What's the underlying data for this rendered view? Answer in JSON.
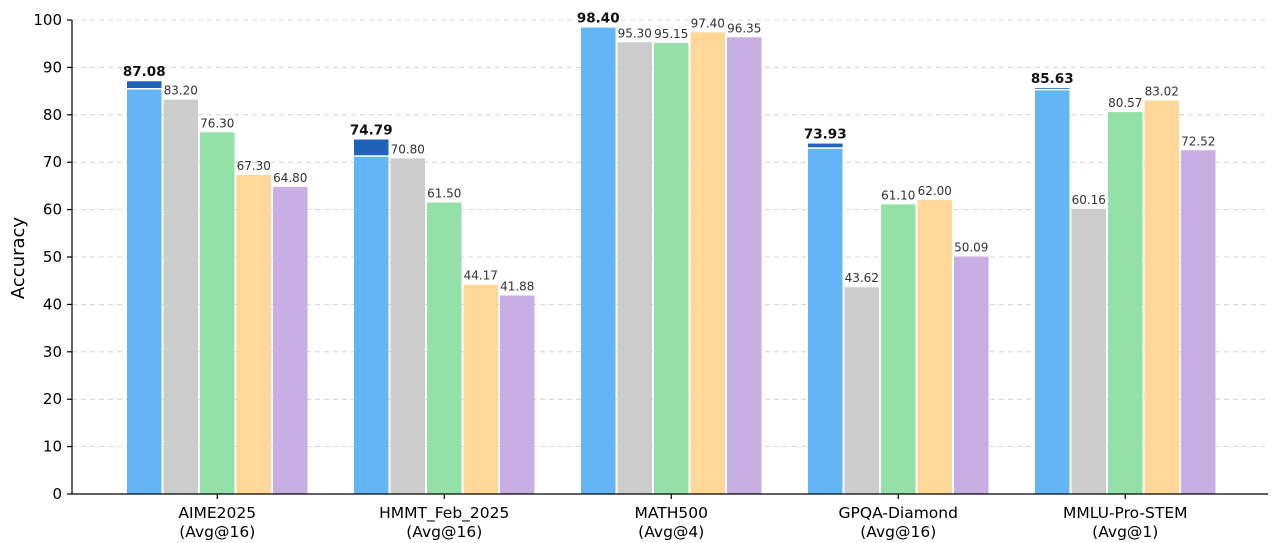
{
  "chart_data": {
    "type": "bar",
    "title": "",
    "xlabel": "",
    "ylabel": "Accuracy",
    "ylim": [
      0,
      100
    ],
    "yticks": [
      0,
      10,
      20,
      30,
      40,
      50,
      60,
      70,
      80,
      90,
      100
    ],
    "grid": true,
    "categories": [
      {
        "line1": "AIME2025",
        "line2": "(Avg@16)"
      },
      {
        "line1": "HMMT_Feb_2025",
        "line2": "(Avg@16)"
      },
      {
        "line1": "MATH500",
        "line2": "(Avg@4)"
      },
      {
        "line1": "GPQA-Diamond",
        "line2": "(Avg@16)"
      },
      {
        "line1": "MMLU-Pro-STEM",
        "line2": "(Avg@1)"
      }
    ],
    "series": [
      {
        "color": "#64b5f6",
        "highlight_color": "#1e63b8",
        "values": [
          87.08,
          74.79,
          98.4,
          73.93,
          85.63
        ],
        "labels": [
          "87.08",
          "74.79",
          "98.40",
          "73.93",
          "85.63"
        ],
        "bold": true
      },
      {
        "color": "#cccccc",
        "values": [
          83.2,
          70.8,
          95.3,
          43.62,
          60.16
        ],
        "labels": [
          "83.20",
          "70.80",
          "95.30",
          "43.62",
          "60.16"
        ]
      },
      {
        "color": "#93e0a8",
        "values": [
          76.3,
          61.5,
          95.15,
          61.1,
          80.57
        ],
        "labels": [
          "76.30",
          "61.50",
          "95.15",
          "61.10",
          "80.57"
        ]
      },
      {
        "color": "#ffd899",
        "values": [
          67.3,
          44.17,
          97.4,
          62.0,
          83.02
        ],
        "labels": [
          "67.30",
          "44.17",
          "97.40",
          "62.00",
          "83.02"
        ]
      },
      {
        "color": "#c9aee3",
        "values": [
          64.8,
          41.88,
          96.35,
          50.09,
          72.52
        ],
        "labels": [
          "64.80",
          "41.88",
          "96.35",
          "50.09",
          "72.52"
        ]
      }
    ],
    "highlight_base": [
      85.5,
      71.3,
      98.4,
      73.0,
      85.3
    ]
  }
}
